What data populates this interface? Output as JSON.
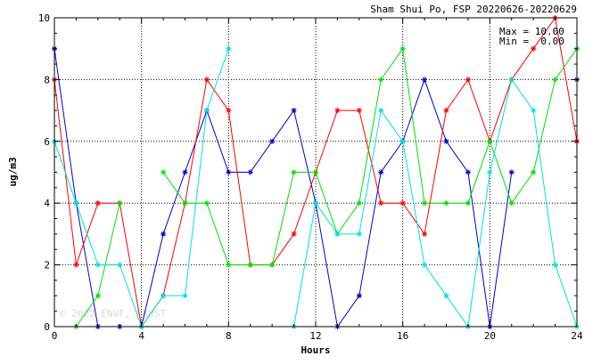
{
  "title": "Sham Shui Po, FSP 20220626-20220629",
  "watermark": "© 2022 ENVF, HKUST",
  "stats": {
    "max_text": "Max = 10.00",
    "min_text": "Min =  0.00"
  },
  "chart_data": {
    "type": "line",
    "title": "Sham Shui Po, FSP 20220626-20220629",
    "xlabel": "Hours",
    "ylabel": "ug/m3",
    "xlim": [
      0,
      24
    ],
    "ylim": [
      0,
      10
    ],
    "xticks": [
      0,
      4,
      8,
      12,
      16,
      20,
      24
    ],
    "yticks": [
      0,
      2,
      4,
      6,
      8,
      10
    ],
    "grid": true,
    "x": [
      0,
      1,
      2,
      3,
      4,
      5,
      6,
      7,
      8,
      9,
      10,
      11,
      12,
      13,
      14,
      15,
      16,
      17,
      18,
      19,
      20,
      21,
      22,
      23,
      24
    ],
    "series": [
      {
        "color": "#0000cc",
        "values": [
          9,
          4,
          0,
          0,
          0,
          3,
          5,
          7,
          5,
          5,
          6,
          7,
          4,
          0,
          1,
          5,
          6,
          8,
          6,
          5,
          0,
          5,
          null,
          null,
          8
        ]
      },
      {
        "color": "#ff0000",
        "values": [
          8,
          2,
          4,
          4,
          0,
          1,
          4,
          8,
          7,
          2,
          2,
          3,
          5,
          7,
          7,
          4,
          4,
          3,
          7,
          8,
          6,
          8,
          9,
          10,
          6
        ]
      },
      {
        "color": "#00e000",
        "values": [
          null,
          0,
          1,
          4,
          null,
          5,
          4,
          4,
          2,
          2,
          2,
          5,
          5,
          3,
          4,
          8,
          9,
          4,
          4,
          4,
          6,
          4,
          5,
          8,
          9
        ]
      },
      {
        "color": "#00e0e0",
        "values": [
          6,
          4,
          2,
          2,
          0,
          1,
          1,
          7,
          9,
          null,
          null,
          0,
          4,
          3,
          3,
          7,
          6,
          2,
          1,
          0,
          5,
          8,
          7,
          2,
          0
        ]
      }
    ]
  }
}
